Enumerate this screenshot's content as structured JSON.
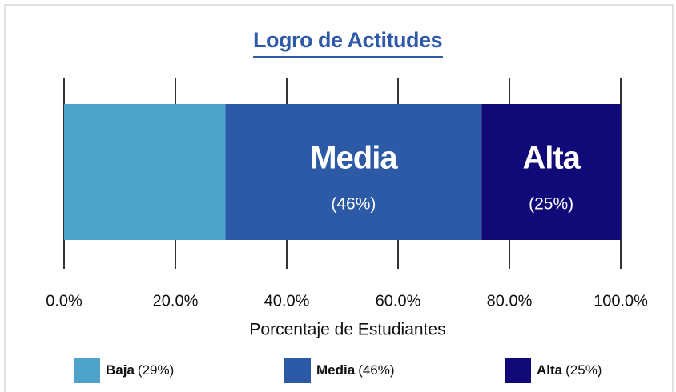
{
  "chart_data": {
    "type": "stacked_barh",
    "title": "Logro de Actitudes",
    "xlabel": "Porcentaje de Estudiantes",
    "xlim": [
      0,
      100
    ],
    "xticks": [
      {
        "value": 0,
        "label": "0.0%"
      },
      {
        "value": 20,
        "label": "20.0%"
      },
      {
        "value": 40,
        "label": "40.0%"
      },
      {
        "value": 60,
        "label": "60.0%"
      },
      {
        "value": 80,
        "label": "80.0%"
      },
      {
        "value": 100,
        "label": "100.0%"
      }
    ],
    "grid": true,
    "legend": "bottom",
    "series": [
      {
        "name": "Baja",
        "color": "#4ea3cc",
        "values": [
          29
        ],
        "value_labels": [
          "(29%)"
        ],
        "label_inside": false
      },
      {
        "name": "Media",
        "color": "#2d5aa6",
        "values": [
          46
        ],
        "value_labels": [
          "(46%)"
        ],
        "label_inside": true
      },
      {
        "name": "Alta",
        "color": "#100a78",
        "values": [
          25
        ],
        "value_labels": [
          "(25%)"
        ],
        "label_inside": true
      }
    ]
  }
}
